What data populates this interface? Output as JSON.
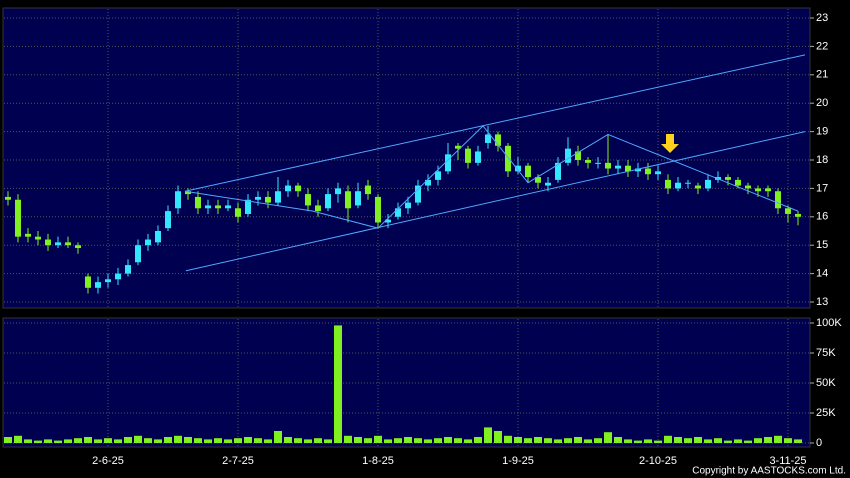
{
  "chart_data": {
    "type": "candlestick",
    "categories": [
      null,
      null,
      null,
      null,
      null,
      null,
      null,
      null,
      null,
      null,
      "2-6-25",
      null,
      null,
      null,
      null,
      null,
      null,
      null,
      null,
      null,
      null,
      null,
      null,
      "2-7-25",
      null,
      null,
      null,
      null,
      null,
      null,
      null,
      null,
      null,
      null,
      null,
      null,
      null,
      "1-8-25",
      null,
      null,
      null,
      null,
      null,
      null,
      null,
      null,
      null,
      null,
      null,
      null,
      null,
      "1-9-25",
      null,
      null,
      null,
      null,
      null,
      null,
      null,
      null,
      null,
      null,
      null,
      null,
      null,
      "2-10-25",
      null,
      null,
      null,
      null,
      null,
      null,
      null,
      null,
      null,
      null,
      null,
      null,
      "3-11-25",
      null
    ],
    "open": [
      16.7,
      16.6,
      15.4,
      15.3,
      15.2,
      15.0,
      15.1,
      15.0,
      13.9,
      13.5,
      13.7,
      13.8,
      14.0,
      14.4,
      15.0,
      15.1,
      15.6,
      16.3,
      16.9,
      16.7,
      16.3,
      16.4,
      16.3,
      16.3,
      16.1,
      16.6,
      16.7,
      16.5,
      16.9,
      17.1,
      16.8,
      16.4,
      16.3,
      16.8,
      16.9,
      16.4,
      17.1,
      16.7,
      15.8,
      16.0,
      16.3,
      16.5,
      17.1,
      17.3,
      17.6,
      18.5,
      18.4,
      17.9,
      18.6,
      18.9,
      18.5,
      17.6,
      17.8,
      17.4,
      17.1,
      17.3,
      17.9,
      18.3,
      18.0,
      17.9,
      17.9,
      17.7,
      17.8,
      17.6,
      17.7,
      17.5,
      17.3,
      17.0,
      17.2,
      17.1,
      17.0,
      17.3,
      17.4,
      17.3,
      17.1,
      17.0,
      17.0,
      16.9,
      16.3,
      16.1
    ],
    "high": [
      16.9,
      16.8,
      15.6,
      15.5,
      15.4,
      15.3,
      15.3,
      15.1,
      14.0,
      13.9,
      14.0,
      14.2,
      14.5,
      15.2,
      15.4,
      15.7,
      16.4,
      17.1,
      17.0,
      16.9,
      16.6,
      16.6,
      16.6,
      16.5,
      16.8,
      16.9,
      16.9,
      17.4,
      17.3,
      17.2,
      17.0,
      16.6,
      17.0,
      17.2,
      17.1,
      17.2,
      17.3,
      16.8,
      16.1,
      16.5,
      16.7,
      17.3,
      17.5,
      17.8,
      18.6,
      18.6,
      18.5,
      18.5,
      19.2,
      19.0,
      18.6,
      18.1,
      17.9,
      17.5,
      17.4,
      18.1,
      18.8,
      18.5,
      18.1,
      18.1,
      18.9,
      18.0,
      18.0,
      17.9,
      17.9,
      17.8,
      17.5,
      17.4,
      17.3,
      17.2,
      17.5,
      17.6,
      17.5,
      17.4,
      17.2,
      17.1,
      17.1,
      17.0,
      16.4,
      16.2
    ],
    "low": [
      16.4,
      15.1,
      15.1,
      15.0,
      14.8,
      14.9,
      14.9,
      14.7,
      13.3,
      13.3,
      13.5,
      13.6,
      13.9,
      14.3,
      14.8,
      15.0,
      15.5,
      16.1,
      16.6,
      16.1,
      16.1,
      16.1,
      16.2,
      15.8,
      16.0,
      16.4,
      16.3,
      16.4,
      16.7,
      16.7,
      16.2,
      16.0,
      16.2,
      16.5,
      15.8,
      16.3,
      16.6,
      15.6,
      15.6,
      15.9,
      16.1,
      16.4,
      16.9,
      17.1,
      17.5,
      18.0,
      17.7,
      17.8,
      18.4,
      18.3,
      17.4,
      17.5,
      17.2,
      17.0,
      16.9,
      17.2,
      17.8,
      17.8,
      17.7,
      17.7,
      17.5,
      17.5,
      17.4,
      17.4,
      17.3,
      17.3,
      16.8,
      16.9,
      17.0,
      16.8,
      16.9,
      17.2,
      17.1,
      17.0,
      16.8,
      16.7,
      16.7,
      16.1,
      15.8,
      15.7
    ],
    "close": [
      16.6,
      15.3,
      15.3,
      15.2,
      15.0,
      15.1,
      15.0,
      14.9,
      13.5,
      13.7,
      13.8,
      14.0,
      14.3,
      15.0,
      15.2,
      15.5,
      16.2,
      16.9,
      16.8,
      16.3,
      16.4,
      16.3,
      16.4,
      16.0,
      16.6,
      16.7,
      16.5,
      16.9,
      17.1,
      16.9,
      16.4,
      16.2,
      16.8,
      17.0,
      16.3,
      16.9,
      16.8,
      15.8,
      15.9,
      16.3,
      16.5,
      17.1,
      17.3,
      17.6,
      18.2,
      18.4,
      17.9,
      18.3,
      18.9,
      18.5,
      17.6,
      17.8,
      17.4,
      17.2,
      17.2,
      17.9,
      18.4,
      18.0,
      17.9,
      17.9,
      17.7,
      17.8,
      17.6,
      17.7,
      17.5,
      17.6,
      17.0,
      17.2,
      17.2,
      17.0,
      17.3,
      17.4,
      17.3,
      17.1,
      17.0,
      16.9,
      16.9,
      16.3,
      16.1,
      16.0
    ],
    "volume": [
      5000,
      6000,
      3000,
      2000,
      3000,
      2000,
      3000,
      4000,
      5000,
      3000,
      4000,
      3000,
      5000,
      6000,
      4000,
      3000,
      5000,
      6000,
      5000,
      4000,
      3000,
      4000,
      3000,
      4000,
      5000,
      4000,
      3000,
      10000,
      5000,
      4000,
      3000,
      4000,
      3000,
      98000,
      6000,
      5000,
      4000,
      6000,
      3000,
      4000,
      5000,
      4000,
      3000,
      4000,
      5000,
      4000,
      3000,
      5000,
      13000,
      10000,
      6000,
      5000,
      4000,
      5000,
      4000,
      3000,
      4000,
      5000,
      3000,
      4000,
      9000,
      5000,
      3000,
      2000,
      3000,
      2000,
      6000,
      5000,
      4000,
      5000,
      3000,
      4000,
      2000,
      3000,
      2000,
      4000,
      5000,
      6000,
      4000,
      3000
    ],
    "up_color": "#33e6ff",
    "down_color": "#80f020",
    "volume_color": "#80f020",
    "ylim": [
      13,
      23
    ],
    "yticks": [
      13,
      14,
      15,
      16,
      17,
      18,
      19,
      20,
      21,
      22,
      23
    ],
    "volume_ylim": [
      0,
      100000
    ],
    "volume_yticks": [
      0,
      {
        "value": 25000,
        "label": "25K"
      },
      {
        "value": 50000,
        "label": "50K"
      },
      {
        "value": 75000,
        "label": "75K"
      },
      {
        "value": 100000,
        "label": "100K"
      }
    ],
    "grid": true,
    "trendline_color": "#4fa8ff",
    "trendlines": [
      {
        "x": [
          17.7,
          79.7
        ],
        "y": [
          16.9,
          21.7
        ]
      },
      {
        "x": [
          17.8,
          79.7
        ],
        "y": [
          14.1,
          19.0
        ]
      },
      {
        "x": [
          17.7,
          30.5,
          37.0,
          47.5,
          52.0,
          60.0,
          79.0
        ],
        "y": [
          16.9,
          16.2,
          15.6,
          19.2,
          17.2,
          18.9,
          16.2
        ]
      }
    ],
    "copyright": "Copyright by AASTOCKS.com Ltd."
  }
}
